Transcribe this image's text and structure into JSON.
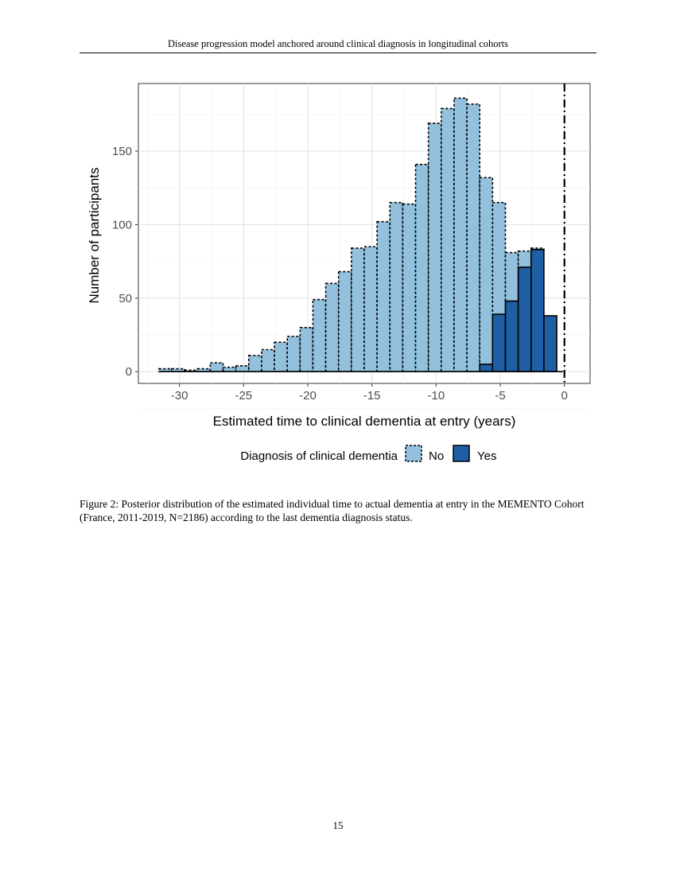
{
  "header": "Disease progression model anchored around clinical diagnosis in longitudinal cohorts",
  "caption": "Figure 2: Posterior distribution of the estimated individual time to actual dementia at entry in the MEMENTO Cohort (France, 2011-2019, N=2186) according to the last dementia diagnosis status.",
  "page_number": "15",
  "chart_data": {
    "type": "bar",
    "stacked": true,
    "title": "",
    "xlabel": "Estimated time to clinical dementia at entry (years)",
    "ylabel": "Number of participants",
    "xlim": [
      -33.2,
      2
    ],
    "ylim": [
      -8,
      196
    ],
    "xticks": [
      -30,
      -25,
      -20,
      -15,
      -10,
      -5,
      0
    ],
    "xtick_labels": [
      "-30",
      "-25",
      "-20",
      "-15",
      "-10",
      "-5",
      "0"
    ],
    "yticks": [
      0,
      50,
      100,
      150
    ],
    "ytick_labels": [
      "0",
      "50",
      "100",
      "150"
    ],
    "grid": true,
    "bin_width": 1,
    "x": [
      -31.1,
      -30.1,
      -29.1,
      -28.1,
      -27.1,
      -26.1,
      -25.1,
      -24.1,
      -23.1,
      -22.1,
      -21.1,
      -20.1,
      -19.1,
      -18.1,
      -17.1,
      -16.1,
      -15.1,
      -14.1,
      -13.1,
      -12.1,
      -11.1,
      -10.1,
      -9.1,
      -8.1,
      -7.1,
      -6.1,
      -5.1,
      -4.1,
      -3.1,
      -2.1,
      -1.1
    ],
    "series": [
      {
        "name": "No",
        "color": "#92c0dd",
        "values": [
          2,
          2,
          1,
          2,
          6,
          3,
          4,
          11,
          15,
          20,
          24,
          30,
          49,
          60,
          68,
          84,
          85,
          102,
          115,
          114,
          141,
          169,
          179,
          186,
          182,
          127,
          76,
          33,
          11,
          1,
          0
        ]
      },
      {
        "name": "Yes",
        "color": "#1f5fa3",
        "values": [
          0,
          0,
          0,
          0,
          0,
          0,
          0,
          0,
          0,
          0,
          0,
          0,
          0,
          0,
          0,
          0,
          0,
          0,
          0,
          0,
          0,
          0,
          0,
          0,
          0,
          5,
          39,
          48,
          71,
          83,
          38
        ]
      }
    ],
    "reference_line": {
      "x": 0,
      "style": "dashdot"
    },
    "legend": {
      "title": "Diagnosis of clinical dementia",
      "entries": [
        "No",
        "Yes"
      ],
      "placement": "bottom"
    }
  }
}
